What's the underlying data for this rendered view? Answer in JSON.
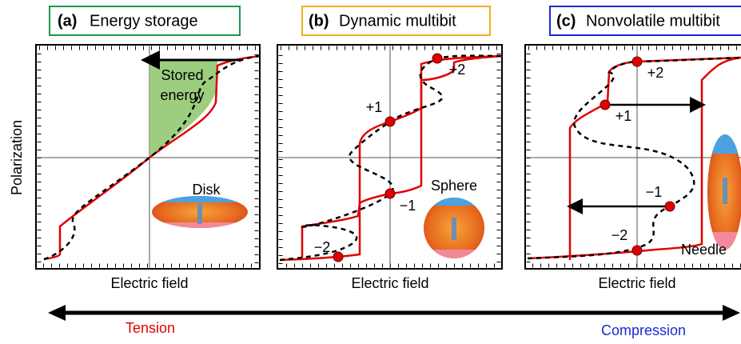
{
  "y_label": "Polarization",
  "panels": [
    {
      "tag": "(a)",
      "title": "Energy storage",
      "x_label": "Electric field",
      "annotation": [
        "Stored",
        "energy"
      ],
      "shape": "Disk"
    },
    {
      "tag": "(b)",
      "title": "Dynamic multibit",
      "x_label": "Electric field",
      "shape": "Sphere",
      "states": [
        "+2",
        "+1",
        "−1",
        "−2"
      ]
    },
    {
      "tag": "(c)",
      "title": "Nonvolatile multibit",
      "x_label": "Electric field",
      "shape": "Needle",
      "states": [
        "+2",
        "+1",
        "−1",
        "−2"
      ]
    }
  ],
  "arrow": {
    "left": "Tension",
    "right": "Compression"
  }
}
